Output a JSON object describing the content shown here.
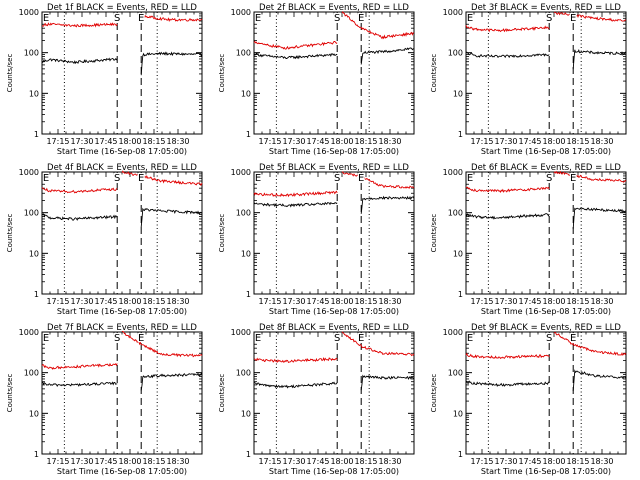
{
  "figure": {
    "background": "#ffffff",
    "colors": {
      "events": "#000000",
      "lld": "#e00000",
      "axis": "#000000"
    }
  },
  "shared_axes": {
    "ylabel": "Counts/sec",
    "xlabel": "Start Time (16-Sep-08 17:05:00)",
    "ylim": [
      1,
      1000
    ],
    "yscale": "log",
    "yticks": [
      1,
      10,
      100,
      1000
    ],
    "xlim_minutes": [
      0,
      100
    ],
    "xticks": [
      {
        "minute": 10,
        "label": "17:15"
      },
      {
        "minute": 25,
        "label": "17:30"
      },
      {
        "minute": 40,
        "label": "17:45"
      },
      {
        "minute": 55,
        "label": "18:00"
      },
      {
        "minute": 70,
        "label": "18:15"
      },
      {
        "minute": 85,
        "label": "18:30"
      }
    ]
  },
  "chart_data": [
    {
      "type": "line",
      "title": "Det 1f BLACK = Events, RED = LLD",
      "xlabel": "Start Time (16-Sep-08 17:05:00)",
      "ylabel": "Counts/sec",
      "markers": [
        {
          "label": "E",
          "minute": 0
        },
        {
          "label": "S",
          "minute": 47
        },
        {
          "label": "E",
          "minute": 62
        }
      ],
      "dashed_lines_minutes": [
        47,
        62
      ],
      "dotted_lines_minutes": [
        14,
        72
      ],
      "series": [
        {
          "name": "Events",
          "segments": [
            {
              "x": [
                0,
                5,
                20,
                47
              ],
              "y": [
                60,
                68,
                58,
                70
              ]
            },
            {
              "x": [
                62,
                63,
                75,
                100
              ],
              "y": [
                30,
                90,
                95,
                90
              ]
            }
          ]
        },
        {
          "name": "LLD",
          "segments": [
            {
              "x": [
                0,
                5,
                20,
                47
              ],
              "y": [
                480,
                500,
                460,
                500
              ]
            },
            {
              "x": [
                62,
                66,
                80,
                100
              ],
              "y": [
                820,
                760,
                640,
                650
              ]
            }
          ]
        }
      ]
    },
    {
      "type": "line",
      "title": "Det 2f BLACK = Events, RED = LLD",
      "xlabel": "Start Time (16-Sep-08 17:05:00)",
      "ylabel": "Counts/sec",
      "markers": [
        {
          "label": "E",
          "minute": 0
        },
        {
          "label": "S",
          "minute": 52
        },
        {
          "label": "E",
          "minute": 67
        }
      ],
      "dashed_lines_minutes": [
        52,
        67
      ],
      "dotted_lines_minutes": [
        14,
        72
      ],
      "series": [
        {
          "name": "Events",
          "segments": [
            {
              "x": [
                0,
                5,
                20,
                52
              ],
              "y": [
                95,
                85,
                75,
                90
              ]
            },
            {
              "x": [
                67,
                68,
                80,
                100
              ],
              "y": [
                50,
                100,
                105,
                125
              ]
            }
          ]
        },
        {
          "name": "LLD",
          "segments": [
            {
              "x": [
                0,
                5,
                20,
                52
              ],
              "y": [
                190,
                160,
                130,
                180
              ]
            },
            {
              "x": [
                55,
                67,
                80,
                100
              ],
              "y": [
                1000,
                400,
                240,
                300
              ]
            }
          ]
        }
      ]
    },
    {
      "type": "line",
      "title": "Det 3f BLACK = Events, RED = LLD",
      "xlabel": "Start Time (16-Sep-08 17:05:00)",
      "ylabel": "Counts/sec",
      "markers": [
        {
          "label": "E",
          "minute": 0
        },
        {
          "label": "S",
          "minute": 52
        },
        {
          "label": "E",
          "minute": 67
        }
      ],
      "dashed_lines_minutes": [
        52,
        67
      ],
      "dotted_lines_minutes": [
        14,
        72
      ],
      "series": [
        {
          "name": "Events",
          "segments": [
            {
              "x": [
                0,
                5,
                20,
                52
              ],
              "y": [
                100,
                85,
                80,
                90
              ]
            },
            {
              "x": [
                67,
                68,
                80,
                100
              ],
              "y": [
                40,
                110,
                100,
                95
              ]
            }
          ]
        },
        {
          "name": "LLD",
          "segments": [
            {
              "x": [
                0,
                5,
                20,
                52
              ],
              "y": [
                450,
                380,
                350,
                420
              ]
            },
            {
              "x": [
                55,
                67,
                80,
                100
              ],
              "y": [
                950,
                850,
                700,
                600
              ]
            }
          ]
        }
      ]
    },
    {
      "type": "line",
      "title": "Det 4f BLACK = Events, RED = LLD",
      "xlabel": "Start Time (16-Sep-08 17:05:00)",
      "ylabel": "Counts/sec",
      "markers": [
        {
          "label": "E",
          "minute": 0
        },
        {
          "label": "S",
          "minute": 47
        },
        {
          "label": "E",
          "minute": 62
        }
      ],
      "dashed_lines_minutes": [
        47,
        62
      ],
      "dotted_lines_minutes": [
        14,
        72
      ],
      "series": [
        {
          "name": "Events",
          "segments": [
            {
              "x": [
                0,
                5,
                20,
                47
              ],
              "y": [
                90,
                75,
                70,
                80
              ]
            },
            {
              "x": [
                62,
                63,
                75,
                100
              ],
              "y": [
                45,
                120,
                110,
                100
              ]
            }
          ]
        },
        {
          "name": "LLD",
          "segments": [
            {
              "x": [
                0,
                5,
                20,
                47
              ],
              "y": [
                400,
                340,
                330,
                380
              ]
            },
            {
              "x": [
                50,
                62,
                75,
                100
              ],
              "y": [
                1000,
                800,
                600,
                500
              ]
            }
          ]
        }
      ]
    },
    {
      "type": "line",
      "title": "Det 5f BLACK = Events, RED = LLD",
      "xlabel": "Start Time (16-Sep-08 17:05:00)",
      "ylabel": "Counts/sec",
      "markers": [
        {
          "label": "E",
          "minute": 0
        },
        {
          "label": "S",
          "minute": 52
        },
        {
          "label": "E",
          "minute": 67
        }
      ],
      "dashed_lines_minutes": [
        52,
        67
      ],
      "dotted_lines_minutes": [
        14,
        72
      ],
      "series": [
        {
          "name": "Events",
          "segments": [
            {
              "x": [
                0,
                5,
                20,
                52
              ],
              "y": [
                170,
                160,
                150,
                170
              ]
            },
            {
              "x": [
                67,
                68,
                80,
                100
              ],
              "y": [
                90,
                220,
                230,
                230
              ]
            }
          ]
        },
        {
          "name": "LLD",
          "segments": [
            {
              "x": [
                0,
                5,
                20,
                52
              ],
              "y": [
                300,
                280,
                270,
                320
              ]
            },
            {
              "x": [
                55,
                67,
                80,
                100
              ],
              "y": [
                1000,
                750,
                450,
                420
              ]
            }
          ]
        }
      ]
    },
    {
      "type": "line",
      "title": "Det 6f BLACK = Events, RED = LLD",
      "xlabel": "Start Time (16-Sep-08 17:05:00)",
      "ylabel": "Counts/sec",
      "markers": [
        {
          "label": "E",
          "minute": 0
        },
        {
          "label": "S",
          "minute": 52
        },
        {
          "label": "E",
          "minute": 67
        }
      ],
      "dashed_lines_minutes": [
        52,
        67
      ],
      "dotted_lines_minutes": [
        14,
        72
      ],
      "series": [
        {
          "name": "Events",
          "segments": [
            {
              "x": [
                0,
                5,
                20,
                52
              ],
              "y": [
                90,
                80,
                75,
                90
              ]
            },
            {
              "x": [
                67,
                68,
                80,
                100
              ],
              "y": [
                40,
                130,
                120,
                110
              ]
            }
          ]
        },
        {
          "name": "LLD",
          "segments": [
            {
              "x": [
                0,
                5,
                20,
                52
              ],
              "y": [
                420,
                360,
                340,
                400
              ]
            },
            {
              "x": [
                55,
                67,
                80,
                100
              ],
              "y": [
                1000,
                850,
                650,
                600
              ]
            }
          ]
        }
      ]
    },
    {
      "type": "line",
      "title": "Det 7f BLACK = Events, RED = LLD",
      "xlabel": "Start Time (16-Sep-08 17:05:00)",
      "ylabel": "Counts/sec",
      "markers": [
        {
          "label": "E",
          "minute": 0
        },
        {
          "label": "S",
          "minute": 47
        },
        {
          "label": "E",
          "minute": 62
        }
      ],
      "dashed_lines_minutes": [
        47,
        62
      ],
      "dotted_lines_minutes": [
        14,
        72
      ],
      "series": [
        {
          "name": "Events",
          "segments": [
            {
              "x": [
                0,
                5,
                20,
                47
              ],
              "y": [
                55,
                50,
                50,
                55
              ]
            },
            {
              "x": [
                62,
                63,
                75,
                100
              ],
              "y": [
                35,
                80,
                85,
                90
              ]
            }
          ]
        },
        {
          "name": "LLD",
          "segments": [
            {
              "x": [
                0,
                5,
                20,
                47
              ],
              "y": [
                150,
                130,
                140,
                160
              ]
            },
            {
              "x": [
                50,
                62,
                75,
                100
              ],
              "y": [
                1000,
                500,
                280,
                260
              ]
            }
          ]
        }
      ]
    },
    {
      "type": "line",
      "title": "Det 8f BLACK = Events, RED = LLD",
      "xlabel": "Start Time (16-Sep-08 17:05:00)",
      "ylabel": "Counts/sec",
      "markers": [
        {
          "label": "E",
          "minute": 0
        },
        {
          "label": "S",
          "minute": 52
        },
        {
          "label": "E",
          "minute": 67
        }
      ],
      "dashed_lines_minutes": [
        52,
        67
      ],
      "dotted_lines_minutes": [
        14,
        72
      ],
      "series": [
        {
          "name": "Events",
          "segments": [
            {
              "x": [
                0,
                5,
                20,
                52
              ],
              "y": [
                55,
                50,
                45,
                55
              ]
            },
            {
              "x": [
                67,
                68,
                80,
                100
              ],
              "y": [
                35,
                80,
                75,
                75
              ]
            }
          ]
        },
        {
          "name": "LLD",
          "segments": [
            {
              "x": [
                0,
                5,
                20,
                52
              ],
              "y": [
                220,
                200,
                190,
                220
              ]
            },
            {
              "x": [
                55,
                67,
                80,
                100
              ],
              "y": [
                1000,
                450,
                300,
                280
              ]
            }
          ]
        }
      ]
    },
    {
      "type": "line",
      "title": "Det 9f BLACK = Events, RED = LLD",
      "xlabel": "Start Time (16-Sep-08 17:05:00)",
      "ylabel": "Counts/sec",
      "markers": [
        {
          "label": "E",
          "minute": 0
        },
        {
          "label": "S",
          "minute": 52
        },
        {
          "label": "E",
          "minute": 67
        }
      ],
      "dashed_lines_minutes": [
        52,
        67
      ],
      "dotted_lines_minutes": [
        14,
        72
      ],
      "series": [
        {
          "name": "Events",
          "segments": [
            {
              "x": [
                0,
                5,
                20,
                52
              ],
              "y": [
                60,
                55,
                50,
                55
              ]
            },
            {
              "x": [
                67,
                68,
                80,
                100
              ],
              "y": [
                35,
                110,
                85,
                75
              ]
            }
          ]
        },
        {
          "name": "LLD",
          "segments": [
            {
              "x": [
                0,
                5,
                20,
                52
              ],
              "y": [
                280,
                250,
                240,
                260
              ]
            },
            {
              "x": [
                55,
                67,
                80,
                100
              ],
              "y": [
                1000,
                500,
                330,
                280
              ]
            }
          ]
        }
      ]
    }
  ]
}
